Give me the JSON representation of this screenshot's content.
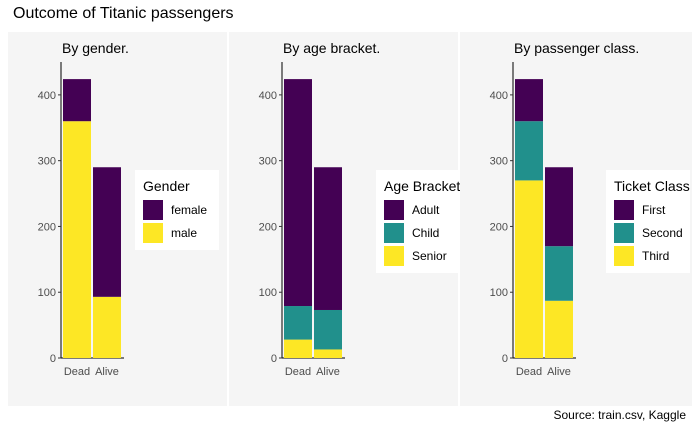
{
  "title": "Outcome of Titanic passengers",
  "caption": "Source: train.csv, Kaggle",
  "colors": {
    "panel_bg": "#f5f5f5",
    "axis": "#000000",
    "tick_text": "#4d4d4d"
  },
  "chart_data": [
    {
      "type": "bar",
      "stacked": true,
      "title": "By gender.",
      "categories": [
        "Dead",
        "Alive"
      ],
      "ylim": [
        0,
        450
      ],
      "yticks": [
        0,
        100,
        200,
        300,
        400
      ],
      "grid": false,
      "legend": {
        "title": "Gender",
        "position": "right"
      },
      "series": [
        {
          "name": "female",
          "color": "#440154",
          "values": [
            64,
            197
          ]
        },
        {
          "name": "male",
          "color": "#FDE725",
          "values": [
            360,
            93
          ]
        }
      ]
    },
    {
      "type": "bar",
      "stacked": true,
      "title": "By age bracket.",
      "categories": [
        "Dead",
        "Alive"
      ],
      "ylim": [
        0,
        450
      ],
      "yticks": [
        0,
        100,
        200,
        300,
        400
      ],
      "grid": false,
      "legend": {
        "title": "Age Bracket",
        "position": "right"
      },
      "series": [
        {
          "name": "Adult",
          "color": "#440154",
          "values": [
            345,
            217
          ]
        },
        {
          "name": "Child",
          "color": "#21908C",
          "values": [
            51,
            60
          ]
        },
        {
          "name": "Senior",
          "color": "#FDE725",
          "values": [
            28,
            13
          ]
        }
      ]
    },
    {
      "type": "bar",
      "stacked": true,
      "title": "By passenger class.",
      "categories": [
        "Dead",
        "Alive"
      ],
      "ylim": [
        0,
        450
      ],
      "yticks": [
        0,
        100,
        200,
        300,
        400
      ],
      "grid": false,
      "legend": {
        "title": "Ticket Class",
        "position": "right"
      },
      "series": [
        {
          "name": "First",
          "color": "#440154",
          "values": [
            64,
            120
          ]
        },
        {
          "name": "Second",
          "color": "#21908C",
          "values": [
            90,
            83
          ]
        },
        {
          "name": "Third",
          "color": "#FDE725",
          "values": [
            270,
            87
          ]
        }
      ]
    }
  ]
}
